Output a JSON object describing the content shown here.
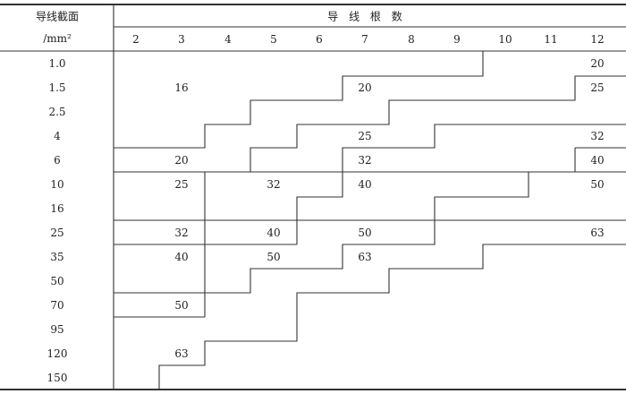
{
  "header": {
    "row_label_title": "导线截面",
    "row_label_unit": "/mm²",
    "column_group_title": "导 线 根 数",
    "columns": [
      "2",
      "3",
      "4",
      "5",
      "6",
      "7",
      "8",
      "9",
      "10",
      "11",
      "12"
    ]
  },
  "rows": [
    {
      "section": "1.0",
      "cells": {
        "12": "20"
      }
    },
    {
      "section": "1.5",
      "cells": {
        "3": "16",
        "7": "20",
        "12": "25"
      }
    },
    {
      "section": "2.5",
      "cells": {}
    },
    {
      "section": "4",
      "cells": {
        "7": "25",
        "12": "32"
      }
    },
    {
      "section": "6",
      "cells": {
        "3": "20",
        "7": "32",
        "12": "40"
      }
    },
    {
      "section": "10",
      "cells": {
        "3": "25",
        "5": "32",
        "7": "40",
        "12": "50"
      }
    },
    {
      "section": "16",
      "cells": {}
    },
    {
      "section": "25",
      "cells": {
        "3": "32",
        "5": "40",
        "7": "50",
        "12": "63"
      }
    },
    {
      "section": "35",
      "cells": {
        "3": "40",
        "5": "50",
        "7": "63"
      }
    },
    {
      "section": "50",
      "cells": {}
    },
    {
      "section": "70",
      "cells": {
        "3": "50"
      }
    },
    {
      "section": "95",
      "cells": {}
    },
    {
      "section": "120",
      "cells": {
        "3": "63"
      }
    },
    {
      "section": "150",
      "cells": {}
    }
  ]
}
